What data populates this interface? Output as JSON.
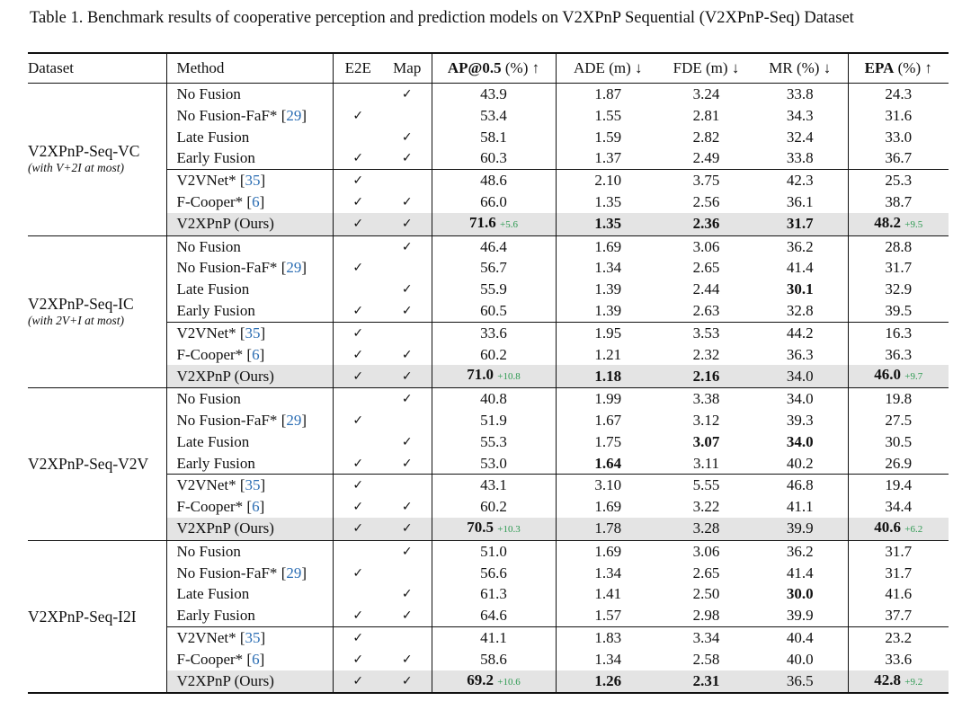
{
  "caption": "Table 1. Benchmark results of cooperative perception and prediction models on V2XPnP Sequential (V2XPnP-Seq) Dataset",
  "header": {
    "dataset": "Dataset",
    "method": "Method",
    "e2e": "E2E",
    "map": "Map",
    "ap_bold": "AP@0.5",
    "ap_unit": " (%) ↑",
    "ade": "ADE (m) ↓",
    "fde": "FDE (m) ↓",
    "mr": "MR (%) ↓",
    "epa_bold": "EPA",
    "epa_unit": " (%) ↑"
  },
  "check_mark": "✓",
  "groups": [
    {
      "name": "V2XPnP-Seq-VC",
      "note": "(with V+2I at most)",
      "rows": [
        {
          "method": "No Fusion",
          "ref": "",
          "e2e": false,
          "map": true,
          "ap": "43.9",
          "ade": "1.87",
          "fde": "3.24",
          "mr": "33.8",
          "epa": "24.3"
        },
        {
          "method": "No Fusion-FaF*",
          "ref": "29",
          "e2e": true,
          "map": false,
          "ap": "53.4",
          "ade": "1.55",
          "fde": "2.81",
          "mr": "34.3",
          "epa": "31.6"
        },
        {
          "method": "Late Fusion",
          "ref": "",
          "e2e": false,
          "map": true,
          "ap": "58.1",
          "ade": "1.59",
          "fde": "2.82",
          "mr": "32.4",
          "epa": "33.0"
        },
        {
          "method": "Early Fusion",
          "ref": "",
          "e2e": true,
          "map": true,
          "ap": "60.3",
          "ade": "1.37",
          "fde": "2.49",
          "mr": "33.8",
          "epa": "36.7"
        },
        {
          "method": "V2VNet*",
          "ref": "35",
          "e2e": true,
          "map": false,
          "ap": "48.6",
          "ade": "2.10",
          "fde": "3.75",
          "mr": "42.3",
          "epa": "25.3"
        },
        {
          "method": "F-Cooper*",
          "ref": "6",
          "e2e": true,
          "map": true,
          "ap": "66.0",
          "ade": "1.35",
          "fde": "2.56",
          "mr": "36.1",
          "epa": "38.7"
        },
        {
          "method": "V2XPnP (Ours)",
          "ref": "",
          "e2e": true,
          "map": true,
          "ap": "71.6",
          "ap_gain": "+5.6",
          "ade": "1.35",
          "fde": "2.36",
          "mr": "31.7",
          "epa": "48.2",
          "epa_gain": "+9.5",
          "bold": [
            "ap",
            "ade",
            "fde",
            "mr",
            "epa"
          ]
        }
      ]
    },
    {
      "name": "V2XPnP-Seq-IC",
      "note": "(with 2V+I at most)",
      "rows": [
        {
          "method": "No Fusion",
          "ref": "",
          "e2e": false,
          "map": true,
          "ap": "46.4",
          "ade": "1.69",
          "fde": "3.06",
          "mr": "36.2",
          "epa": "28.8"
        },
        {
          "method": "No Fusion-FaF*",
          "ref": "29",
          "e2e": true,
          "map": false,
          "ap": "56.7",
          "ade": "1.34",
          "fde": "2.65",
          "mr": "41.4",
          "epa": "31.7"
        },
        {
          "method": "Late Fusion",
          "ref": "",
          "e2e": false,
          "map": true,
          "ap": "55.9",
          "ade": "1.39",
          "fde": "2.44",
          "mr": "30.1",
          "epa": "32.9",
          "bold": [
            "mr"
          ]
        },
        {
          "method": "Early Fusion",
          "ref": "",
          "e2e": true,
          "map": true,
          "ap": "60.5",
          "ade": "1.39",
          "fde": "2.63",
          "mr": "32.8",
          "epa": "39.5"
        },
        {
          "method": "V2VNet*",
          "ref": "35",
          "e2e": true,
          "map": false,
          "ap": "33.6",
          "ade": "1.95",
          "fde": "3.53",
          "mr": "44.2",
          "epa": "16.3"
        },
        {
          "method": "F-Cooper*",
          "ref": "6",
          "e2e": true,
          "map": true,
          "ap": "60.2",
          "ade": "1.21",
          "fde": "2.32",
          "mr": "36.3",
          "epa": "36.3"
        },
        {
          "method": "V2XPnP (Ours)",
          "ref": "",
          "e2e": true,
          "map": true,
          "ap": "71.0",
          "ap_gain": "+10.8",
          "ade": "1.18",
          "fde": "2.16",
          "mr": "34.0",
          "epa": "46.0",
          "epa_gain": "+9.7",
          "bold": [
            "ap",
            "ade",
            "fde",
            "epa"
          ]
        }
      ]
    },
    {
      "name": "V2XPnP-Seq-V2V",
      "note": "",
      "rows": [
        {
          "method": "No Fusion",
          "ref": "",
          "e2e": false,
          "map": true,
          "ap": "40.8",
          "ade": "1.99",
          "fde": "3.38",
          "mr": "34.0",
          "epa": "19.8"
        },
        {
          "method": "No Fusion-FaF*",
          "ref": "29",
          "e2e": true,
          "map": false,
          "ap": "51.9",
          "ade": "1.67",
          "fde": "3.12",
          "mr": "39.3",
          "epa": "27.5"
        },
        {
          "method": "Late Fusion",
          "ref": "",
          "e2e": false,
          "map": true,
          "ap": "55.3",
          "ade": "1.75",
          "fde": "3.07",
          "mr": "34.0",
          "epa": "30.5",
          "bold": [
            "fde",
            "mr"
          ]
        },
        {
          "method": "Early Fusion",
          "ref": "",
          "e2e": true,
          "map": true,
          "ap": "53.0",
          "ade": "1.64",
          "fde": "3.11",
          "mr": "40.2",
          "epa": "26.9",
          "bold": [
            "ade"
          ]
        },
        {
          "method": "V2VNet*",
          "ref": "35",
          "e2e": true,
          "map": false,
          "ap": "43.1",
          "ade": "3.10",
          "fde": "5.55",
          "mr": "46.8",
          "epa": "19.4"
        },
        {
          "method": "F-Cooper*",
          "ref": "6",
          "e2e": true,
          "map": true,
          "ap": "60.2",
          "ade": "1.69",
          "fde": "3.22",
          "mr": "41.1",
          "epa": "34.4"
        },
        {
          "method": "V2XPnP (Ours)",
          "ref": "",
          "e2e": true,
          "map": true,
          "ap": "70.5",
          "ap_gain": "+10.3",
          "ade": "1.78",
          "fde": "3.28",
          "mr": "39.9",
          "epa": "40.6",
          "epa_gain": "+6.2",
          "bold": [
            "ap",
            "epa"
          ]
        }
      ]
    },
    {
      "name": "V2XPnP-Seq-I2I",
      "note": "",
      "rows": [
        {
          "method": "No Fusion",
          "ref": "",
          "e2e": false,
          "map": true,
          "ap": "51.0",
          "ade": "1.69",
          "fde": "3.06",
          "mr": "36.2",
          "epa": "31.7"
        },
        {
          "method": "No Fusion-FaF*",
          "ref": "29",
          "e2e": true,
          "map": false,
          "ap": "56.6",
          "ade": "1.34",
          "fde": "2.65",
          "mr": "41.4",
          "epa": "31.7"
        },
        {
          "method": "Late Fusion",
          "ref": "",
          "e2e": false,
          "map": true,
          "ap": "61.3",
          "ade": "1.41",
          "fde": "2.50",
          "mr": "30.0",
          "epa": "41.6",
          "bold": [
            "mr"
          ]
        },
        {
          "method": "Early Fusion",
          "ref": "",
          "e2e": true,
          "map": true,
          "ap": "64.6",
          "ade": "1.57",
          "fde": "2.98",
          "mr": "39.9",
          "epa": "37.7"
        },
        {
          "method": "V2VNet*",
          "ref": "35",
          "e2e": true,
          "map": false,
          "ap": "41.1",
          "ade": "1.83",
          "fde": "3.34",
          "mr": "40.4",
          "epa": "23.2"
        },
        {
          "method": "F-Cooper*",
          "ref": "6",
          "e2e": true,
          "map": true,
          "ap": "58.6",
          "ade": "1.34",
          "fde": "2.58",
          "mr": "40.0",
          "epa": "33.6"
        },
        {
          "method": "V2XPnP (Ours)",
          "ref": "",
          "e2e": true,
          "map": true,
          "ap": "69.2",
          "ap_gain": "+10.6",
          "ade": "1.26",
          "fde": "2.31",
          "mr": "36.5",
          "epa": "42.8",
          "epa_gain": "+9.2",
          "bold": [
            "ap",
            "ade",
            "fde",
            "epa"
          ]
        }
      ]
    }
  ]
}
